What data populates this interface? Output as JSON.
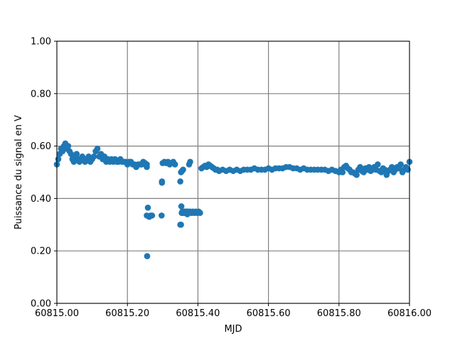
{
  "chart_data": {
    "type": "scatter",
    "xlabel": "MJD",
    "ylabel": "Puissance du signal en V",
    "xlim": [
      60815.0,
      60816.0
    ],
    "ylim": [
      0.0,
      1.0
    ],
    "xticks": [
      60815.0,
      60815.2,
      60815.4,
      60815.6,
      60815.8,
      60816.0
    ],
    "xtick_labels": [
      "60815.00",
      "60815.20",
      "60815.40",
      "60815.60",
      "60815.80",
      "60816.00"
    ],
    "yticks": [
      0.0,
      0.2,
      0.4,
      0.6,
      0.8,
      1.0
    ],
    "ytick_labels": [
      "0.00",
      "0.20",
      "0.40",
      "0.60",
      "0.80",
      "1.00"
    ],
    "grid": true,
    "grid_color": "#808080",
    "point_color": "#1f77b4",
    "series": [
      {
        "x": [
          60815.0,
          60815.004,
          60815.008,
          60815.012,
          60815.016,
          60815.02,
          60815.024,
          60815.028,
          60815.032,
          60815.036,
          60815.04,
          60815.044,
          60815.048,
          60815.052,
          60815.056,
          60815.06,
          60815.064,
          60815.068,
          60815.072,
          60815.076,
          60815.08,
          60815.085,
          60815.09,
          60815.095,
          60815.1,
          60815.105,
          60815.11,
          60815.115,
          60815.12,
          60815.125,
          60815.13,
          60815.135,
          60815.14,
          60815.145,
          60815.15,
          60815.155,
          60815.16,
          60815.165,
          60815.17,
          60815.175,
          60815.18,
          60815.185,
          60815.19,
          60815.195,
          60815.2,
          60815.205,
          60815.21,
          60815.215,
          60815.22,
          60815.225,
          60815.23,
          60815.235,
          60815.24,
          60815.245,
          60815.25,
          60815.255,
          60815.255,
          60815.258,
          60815.262,
          60815.266,
          60815.27,
          60815.256,
          60815.298,
          60815.297,
          60815.298,
          60815.3,
          60815.305,
          60815.31,
          60815.315,
          60815.32,
          60815.325,
          60815.33,
          60815.335,
          60815.35,
          60815.352,
          60815.354,
          60815.356,
          60815.358,
          60815.36,
          60815.362,
          60815.364,
          60815.366,
          60815.368,
          60815.37,
          60815.372,
          60815.374,
          60815.35,
          60815.352,
          60815.355,
          60815.358,
          60815.353,
          60815.37,
          60815.374,
          60815.378,
          60815.382,
          60815.386,
          60815.39,
          60815.394,
          60815.398,
          60815.402,
          60815.406,
          60815.41,
          60815.415,
          60815.42,
          60815.425,
          60815.43,
          60815.435,
          60815.44,
          60815.445,
          60815.45,
          60815.455,
          60815.46,
          60815.47,
          60815.48,
          60815.49,
          60815.5,
          60815.51,
          60815.52,
          60815.53,
          60815.54,
          60815.55,
          60815.56,
          60815.57,
          60815.58,
          60815.59,
          60815.6,
          60815.61,
          60815.62,
          60815.63,
          60815.64,
          60815.65,
          60815.66,
          60815.67,
          60815.68,
          60815.69,
          60815.7,
          60815.71,
          60815.72,
          60815.73,
          60815.74,
          60815.75,
          60815.76,
          60815.77,
          60815.78,
          60815.79,
          60815.8,
          60815.805,
          60815.81,
          60815.815,
          60815.82,
          60815.825,
          60815.83,
          60815.835,
          60815.84,
          60815.845,
          60815.85,
          60815.855,
          60815.86,
          60815.865,
          60815.87,
          60815.875,
          60815.88,
          60815.885,
          60815.89,
          60815.895,
          60815.9,
          60815.905,
          60815.91,
          60815.915,
          60815.92,
          60815.925,
          60815.93,
          60815.935,
          60815.94,
          60815.945,
          60815.95,
          60815.955,
          60815.96,
          60815.965,
          60815.97,
          60815.975,
          60815.98,
          60815.985,
          60815.99,
          60815.995,
          60816.0
        ],
        "y": [
          0.53,
          0.55,
          0.57,
          0.59,
          0.58,
          0.6,
          0.61,
          0.59,
          0.6,
          0.58,
          0.57,
          0.55,
          0.54,
          0.56,
          0.57,
          0.55,
          0.54,
          0.55,
          0.56,
          0.55,
          0.54,
          0.55,
          0.56,
          0.54,
          0.55,
          0.56,
          0.58,
          0.59,
          0.56,
          0.57,
          0.55,
          0.56,
          0.54,
          0.55,
          0.54,
          0.55,
          0.54,
          0.55,
          0.54,
          0.54,
          0.55,
          0.54,
          0.54,
          0.54,
          0.53,
          0.54,
          0.54,
          0.53,
          0.53,
          0.52,
          0.53,
          0.53,
          0.53,
          0.54,
          0.53,
          0.52,
          0.335,
          0.365,
          0.33,
          0.335,
          0.335,
          0.18,
          0.46,
          0.335,
          0.465,
          0.535,
          0.54,
          0.535,
          0.54,
          0.53,
          0.535,
          0.54,
          0.53,
          0.3,
          0.3,
          0.345,
          0.35,
          0.345,
          0.35,
          0.345,
          0.35,
          0.345,
          0.35,
          0.345,
          0.35,
          0.345,
          0.465,
          0.5,
          0.505,
          0.51,
          0.37,
          0.34,
          0.345,
          0.35,
          0.345,
          0.35,
          0.345,
          0.35,
          0.345,
          0.35,
          0.345,
          0.515,
          0.52,
          0.525,
          0.52,
          0.53,
          0.525,
          0.52,
          0.515,
          0.51,
          0.51,
          0.505,
          0.51,
          0.505,
          0.51,
          0.505,
          0.51,
          0.505,
          0.51,
          0.51,
          0.51,
          0.515,
          0.51,
          0.51,
          0.51,
          0.515,
          0.51,
          0.515,
          0.515,
          0.515,
          0.52,
          0.52,
          0.515,
          0.515,
          0.51,
          0.515,
          0.51,
          0.51,
          0.51,
          0.51,
          0.51,
          0.51,
          0.505,
          0.51,
          0.505,
          0.5,
          0.51,
          0.5,
          0.52,
          0.525,
          0.515,
          0.51,
          0.5,
          0.5,
          0.495,
          0.49,
          0.51,
          0.52,
          0.505,
          0.5,
          0.515,
          0.51,
          0.52,
          0.505,
          0.51,
          0.52,
          0.51,
          0.53,
          0.505,
          0.5,
          0.515,
          0.51,
          0.49,
          0.505,
          0.51,
          0.52,
          0.5,
          0.51,
          0.52,
          0.515,
          0.53,
          0.5,
          0.51,
          0.52,
          0.51,
          0.54
        ]
      },
      {
        "x": [
          60815.24,
          60815.25,
          60815.255,
          60815.375,
          60815.378
        ],
        "y": [
          0.53,
          0.535,
          0.53,
          0.53,
          0.54
        ]
      }
    ]
  }
}
